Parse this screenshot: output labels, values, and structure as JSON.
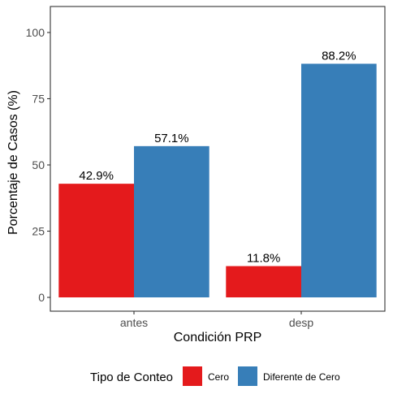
{
  "chart_data": {
    "type": "bar",
    "categories": [
      "antes",
      "desp"
    ],
    "series": [
      {
        "name": "Cero",
        "values": [
          42.9,
          11.8
        ],
        "labels": [
          "42.9%",
          "11.8%"
        ],
        "color": "#e41a1c"
      },
      {
        "name": "Diferente de Cero",
        "values": [
          57.1,
          88.2
        ],
        "labels": [
          "57.1%",
          "88.2%"
        ],
        "color": "#377eb8"
      }
    ],
    "xlabel": "Condición PRP",
    "ylabel": "Porcentaje de Casos (%)",
    "ylim": [
      0,
      110
    ],
    "yticks": [
      0,
      25,
      50,
      75,
      100
    ],
    "ytick_labels": [
      "0",
      "25",
      "50",
      "75",
      "100"
    ],
    "grid": false,
    "legend": {
      "title": "Tipo de Conteo",
      "position": "bottom"
    }
  }
}
